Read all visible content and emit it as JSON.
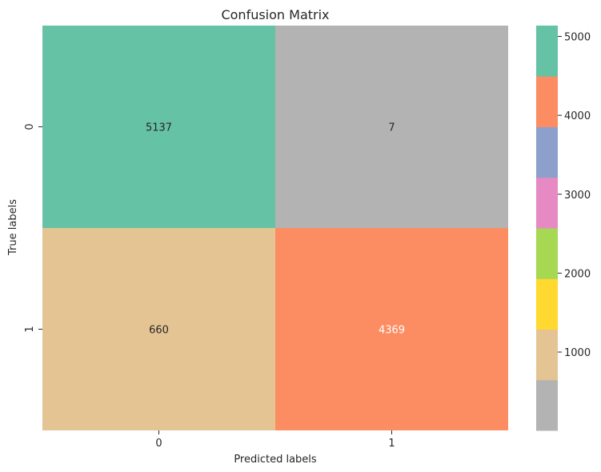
{
  "chart_data": {
    "type": "heatmap",
    "title": "Confusion Matrix",
    "xlabel": "Predicted labels",
    "ylabel": "True labels",
    "x_categories": [
      "0",
      "1"
    ],
    "y_categories": [
      "0",
      "1"
    ],
    "values": [
      [
        5137,
        7
      ],
      [
        660,
        4369
      ]
    ],
    "cell_labels": [
      [
        "5137",
        "7"
      ],
      [
        "660",
        "4369"
      ]
    ],
    "cell_label_colors": [
      [
        "#262626",
        "#262626"
      ],
      [
        "#262626",
        "#ffffff"
      ]
    ],
    "colormap": "Set2",
    "color_range": [
      7,
      5137
    ],
    "colorbar": {
      "ticks": [
        1000,
        2000,
        3000,
        4000,
        5000
      ],
      "tick_labels": [
        "1000",
        "2000",
        "3000",
        "4000",
        "5000"
      ],
      "segments": [
        "#b3b3b3",
        "#e5c494",
        "#ffd92f",
        "#a6d854",
        "#e78ac3",
        "#8da0cb",
        "#fc8d62",
        "#66c2a5"
      ]
    },
    "grid": false
  }
}
